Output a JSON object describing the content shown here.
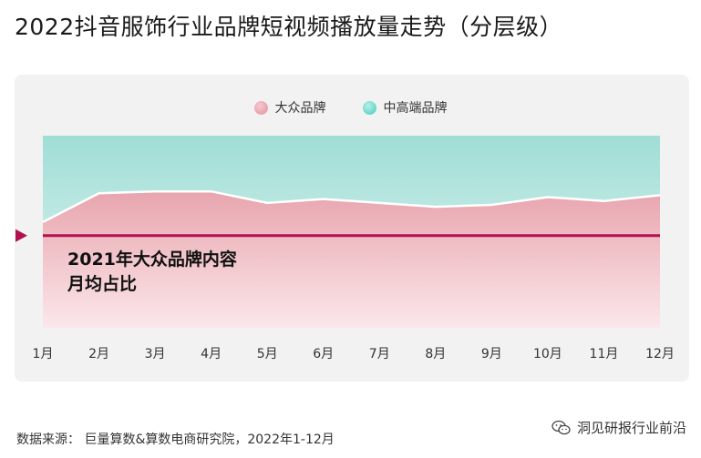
{
  "title": "2022抖音服饰行业品牌短视频播放量走势（分层级）",
  "chart_data": {
    "type": "area",
    "stacked": "percent",
    "categories": [
      "1月",
      "2月",
      "3月",
      "4月",
      "5月",
      "6月",
      "7月",
      "8月",
      "9月",
      "10月",
      "11月",
      "12月"
    ],
    "series": [
      {
        "name": "大众品牌",
        "values": [
          55,
          70,
          71,
          71,
          65,
          67,
          65,
          63,
          64,
          68,
          66,
          69
        ],
        "color": "#e8a5ae"
      },
      {
        "name": "中高端品牌",
        "values": [
          45,
          30,
          29,
          29,
          35,
          33,
          35,
          37,
          36,
          32,
          34,
          31
        ],
        "color": "#9fded6"
      }
    ],
    "ylim": [
      0,
      100
    ],
    "reference_line": {
      "label": "2021年大众品牌内容月均占比",
      "label_line1": "2021年大众品牌内容",
      "label_line2": "月均占比",
      "value": 48,
      "color": "#b0124f"
    },
    "legend_position": "top-center",
    "grid": false
  },
  "footer": {
    "source": "数据来源： 巨量算数&算数电商研究院，2022年1-12月",
    "watermark": "洞见研报行业前沿"
  },
  "colors": {
    "panel_bg": "#f2f2f2",
    "mass_fill_top": "#e8a5ae",
    "mass_fill_bottom": "#fbe7ea",
    "premium_fill_top": "#9fded6",
    "premium_fill_bottom": "#e6f5f3",
    "reference_line": "#b0124f"
  }
}
